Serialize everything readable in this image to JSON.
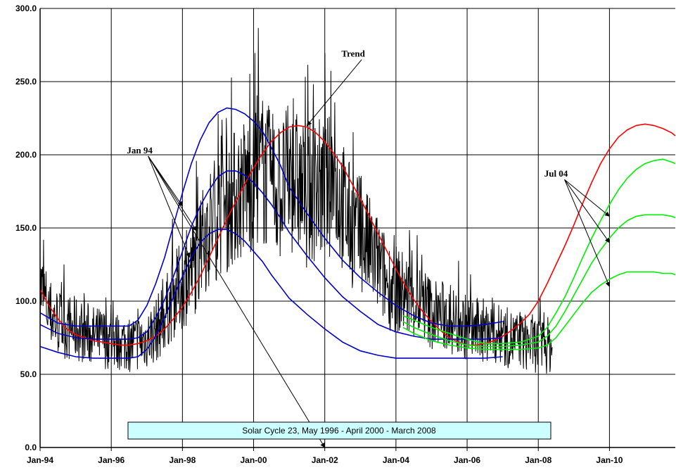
{
  "chart_data": {
    "type": "line",
    "title": "",
    "xlabel": "",
    "ylabel": "",
    "ylim": [
      0,
      300
    ],
    "yticks": [
      0,
      50,
      100,
      150,
      200,
      250,
      300
    ],
    "ytick_labels": [
      "0.0",
      "50.0",
      "100.0",
      "150.0",
      "200.0",
      "250.0",
      "300.0"
    ],
    "xlim": [
      1994.0,
      2011.85
    ],
    "xticks": [
      1994,
      1996,
      1998,
      2000,
      2002,
      2004,
      2006,
      2008,
      2010
    ],
    "xtick_labels": [
      "Jan-94",
      "Jan-96",
      "Jan-98",
      "Jan-00",
      "Jan-02",
      "Jan-04",
      "Jan-06",
      "Jan-08",
      "Jan-10"
    ],
    "grid": true,
    "caption": "Solar Cycle 23, May 1996 - April 2000 - March 2008",
    "annotations": [
      {
        "text": "Trend",
        "x": 2002.8,
        "y": 267,
        "arrows": [
          [
            2001.5,
            220
          ]
        ]
      },
      {
        "text": "Jan 94",
        "x": 1996.8,
        "y": 201,
        "arrows": [
          [
            2002.0,
            0
          ],
          [
            1998.0,
            165
          ],
          [
            1998.4,
            148
          ],
          [
            1998.2,
            130
          ]
        ]
      },
      {
        "text": "Jul 04",
        "x": 2008.5,
        "y": 185,
        "arrows": [
          [
            2010.0,
            158
          ],
          [
            2010.0,
            140
          ],
          [
            2010.0,
            110
          ]
        ]
      }
    ],
    "series": [
      {
        "color": "#000000",
        "style": "daily",
        "x": [
          1994.0,
          1994.25,
          1994.5,
          1994.75,
          1995.0,
          1995.25,
          1995.5,
          1995.75,
          1996.0,
          1996.25,
          1996.5,
          1996.75,
          1997.0,
          1997.25,
          1997.5,
          1997.75,
          1998.0,
          1998.25,
          1998.5,
          1998.75,
          1999.0,
          1999.25,
          1999.5,
          1999.75,
          2000.0,
          2000.25,
          2000.5,
          2000.75,
          2001.0,
          2001.25,
          2001.5,
          2001.75,
          2002.0,
          2002.25,
          2002.5,
          2002.75,
          2003.0,
          2003.25,
          2003.5,
          2003.75,
          2004.0,
          2004.25,
          2004.5,
          2004.75,
          2005.0,
          2005.25,
          2005.5,
          2005.75,
          2006.0,
          2006.25,
          2006.5,
          2006.75,
          2007.0,
          2007.25,
          2007.5,
          2007.75,
          2008.0,
          2008.25,
          2008.4
        ],
        "values": [
          110,
          92,
          86,
          82,
          81,
          79,
          76,
          75,
          73,
          72,
          71,
          72,
          74,
          80,
          90,
          103,
          112,
          120,
          135,
          150,
          160,
          165,
          172,
          178,
          185,
          190,
          180,
          175,
          185,
          180,
          170,
          178,
          175,
          182,
          165,
          150,
          145,
          135,
          125,
          112,
          108,
          105,
          100,
          98,
          92,
          90,
          88,
          85,
          82,
          80,
          80,
          78,
          76,
          74,
          72,
          72,
          70,
          70,
          69
        ]
      },
      {
        "color": "#ff0000",
        "x": [
          1994.0,
          1994.25,
          1994.5,
          1994.75,
          1995.0,
          1995.25,
          1995.5,
          1995.75,
          1996.0,
          1996.25,
          1996.5,
          1996.75,
          1997.0,
          1997.25,
          1997.5,
          1997.75,
          1998.0,
          1998.25,
          1998.5,
          1998.75,
          1999.0,
          1999.25,
          1999.5,
          1999.75,
          2000.0,
          2000.25,
          2000.5,
          2000.75,
          2001.0,
          2001.25,
          2001.5,
          2001.75,
          2002.0,
          2002.25,
          2002.5,
          2002.75,
          2003.0,
          2003.25,
          2003.5,
          2003.75,
          2004.0,
          2004.25,
          2004.5,
          2004.75,
          2005.0,
          2005.25,
          2005.5,
          2005.75,
          2006.0,
          2006.25,
          2006.5,
          2006.75,
          2007.0,
          2007.25,
          2007.5,
          2007.75,
          2008.0,
          2008.25,
          2008.5,
          2008.75,
          2009.0,
          2009.25,
          2009.5,
          2009.75,
          2010.0,
          2010.25,
          2010.5,
          2010.75,
          2011.0,
          2011.25,
          2011.5,
          2011.75,
          2011.85
        ],
        "values": [
          108,
          97,
          88,
          81,
          77,
          75,
          73,
          72,
          71,
          70,
          70,
          71,
          73,
          76,
          81,
          88,
          96,
          106,
          117,
          130,
          143,
          156,
          168,
          180,
          191,
          201,
          209,
          215,
          219,
          220,
          219,
          215,
          209,
          201,
          192,
          181,
          170,
          158,
          146,
          134,
          122,
          111,
          101,
          93,
          86,
          80,
          75,
          72,
          70,
          70,
          71,
          73,
          76,
          80,
          85,
          91,
          100,
          112,
          125,
          138,
          152,
          167,
          181,
          194,
          204,
          212,
          217,
          220,
          221,
          220,
          218,
          215,
          213
        ]
      },
      {
        "color": "#0000cc",
        "x": [
          1994.0,
          1994.5,
          1995.0,
          1995.5,
          1996.0,
          1996.25,
          1996.5,
          1996.75,
          1997.0,
          1997.25,
          1997.5,
          1997.75,
          1998.0,
          1998.25,
          1998.5,
          1998.75,
          1999.0,
          1999.25,
          1999.5,
          1999.75,
          2000.0,
          2000.25,
          2000.5,
          2000.75,
          2001.0,
          2001.5,
          2002.0,
          2002.5,
          2003.0,
          2003.5,
          2004.0,
          2004.5,
          2005.0,
          2005.5,
          2006.0,
          2006.5,
          2007.0
        ],
        "values": [
          92,
          85,
          83,
          83,
          83,
          83,
          83,
          87,
          97,
          112,
          130,
          152,
          174,
          194,
          210,
          222,
          229,
          232,
          231,
          228,
          223,
          216,
          205,
          193,
          178,
          160,
          143,
          128,
          116,
          106,
          97,
          90,
          85,
          83,
          83,
          84,
          86
        ]
      },
      {
        "color": "#0000cc",
        "x": [
          1994.0,
          1994.5,
          1995.0,
          1995.5,
          1996.0,
          1996.25,
          1996.5,
          1996.75,
          1997.0,
          1997.25,
          1997.5,
          1997.75,
          1998.0,
          1998.25,
          1998.5,
          1998.75,
          1999.0,
          1999.25,
          1999.5,
          1999.75,
          2000.0,
          2000.25,
          2000.5,
          2000.75,
          2001.0,
          2001.5,
          2002.0,
          2002.5,
          2003.0,
          2003.5,
          2004.0,
          2004.5,
          2005.0,
          2005.5,
          2006.0,
          2006.5,
          2007.0
        ],
        "values": [
          84,
          78,
          75,
          74,
          74,
          74,
          74,
          75,
          79,
          89,
          101,
          117,
          134,
          151,
          165,
          176,
          185,
          189,
          189,
          186,
          181,
          174,
          166,
          157,
          147,
          131,
          116,
          103,
          93,
          84,
          79,
          76,
          74,
          74,
          74,
          74,
          75
        ]
      },
      {
        "color": "#0000cc",
        "x": [
          1994.0,
          1994.5,
          1995.0,
          1995.5,
          1996.0,
          1996.25,
          1996.5,
          1996.75,
          1997.0,
          1997.25,
          1997.5,
          1997.75,
          1998.0,
          1998.25,
          1998.5,
          1998.75,
          1999.0,
          1999.25,
          1999.5,
          1999.75,
          2000.0,
          2000.25,
          2000.5,
          2000.75,
          2001.0,
          2001.5,
          2002.0,
          2002.5,
          2003.0,
          2003.5,
          2004.0,
          2004.5,
          2005.0,
          2005.5,
          2006.0,
          2006.5,
          2007.0
        ],
        "values": [
          69,
          65,
          62,
          61,
          61,
          61,
          61,
          62,
          67,
          76,
          89,
          103,
          117,
          130,
          140,
          146,
          149,
          149,
          146,
          141,
          134,
          127,
          118,
          110,
          102,
          91,
          81,
          72,
          66,
          63,
          61,
          61,
          61,
          61,
          61,
          61,
          62
        ]
      },
      {
        "color": "#00ee00",
        "x": [
          2004.2,
          2004.5,
          2005.0,
          2005.5,
          2006.0,
          2006.5,
          2007.0,
          2007.5,
          2008.0,
          2008.25,
          2008.5,
          2008.75,
          2009.0,
          2009.25,
          2009.5,
          2009.75,
          2010.0,
          2010.25,
          2010.5,
          2010.75,
          2011.0,
          2011.25,
          2011.5,
          2011.75,
          2011.85
        ],
        "values": [
          90,
          87,
          82,
          78,
          74,
          71,
          71,
          72,
          76,
          82,
          92,
          103,
          116,
          130,
          143,
          155,
          166,
          176,
          184,
          190,
          194,
          196,
          197,
          195,
          194
        ]
      },
      {
        "color": "#00ee00",
        "x": [
          2004.2,
          2004.5,
          2005.0,
          2005.5,
          2006.0,
          2006.5,
          2007.0,
          2007.5,
          2008.0,
          2008.25,
          2008.5,
          2008.75,
          2009.0,
          2009.25,
          2009.5,
          2009.75,
          2010.0,
          2010.25,
          2010.5,
          2010.75,
          2011.0,
          2011.25,
          2011.5,
          2011.75,
          2011.85
        ],
        "values": [
          86,
          82,
          77,
          73,
          70,
          69,
          69,
          70,
          72,
          76,
          83,
          93,
          104,
          115,
          126,
          135,
          143,
          150,
          155,
          158,
          159,
          159,
          159,
          158,
          157
        ]
      },
      {
        "color": "#00ee00",
        "x": [
          2004.2,
          2004.5,
          2005.0,
          2005.5,
          2006.0,
          2006.5,
          2007.0,
          2007.5,
          2008.0,
          2008.25,
          2008.5,
          2008.75,
          2009.0,
          2009.25,
          2009.5,
          2009.75,
          2010.0,
          2010.25,
          2010.5,
          2010.75,
          2011.0,
          2011.25,
          2011.5,
          2011.75,
          2011.85
        ],
        "values": [
          82,
          78,
          73,
          70,
          68,
          67,
          67,
          67,
          68,
          70,
          75,
          83,
          91,
          99,
          106,
          111,
          115,
          118,
          120,
          120,
          120,
          120,
          119,
          119,
          118
        ]
      }
    ]
  }
}
